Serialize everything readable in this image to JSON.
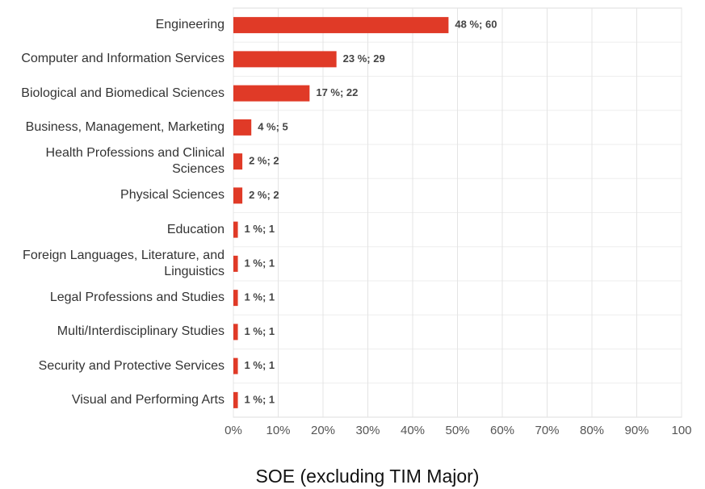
{
  "chart_data": {
    "type": "hbar",
    "title": "SOE (excluding TIM Major)",
    "categories": [
      "Engineering",
      "Computer and Information Services",
      "Biological and Biomedical Sciences",
      "Business, Management, Marketing",
      "Health Professions and Clinical Sciences",
      "Physical Sciences",
      "Education",
      "Foreign Languages, Literature, and Linguistics",
      "Legal Professions and Studies",
      "Multi/Interdisciplinary Studies",
      "Security and Protective Services",
      "Visual and Performing Arts"
    ],
    "values": [
      48,
      23,
      17,
      4,
      2,
      2,
      1,
      1,
      1,
      1,
      1,
      1
    ],
    "value_labels": [
      "48 %; 60",
      "23 %; 29",
      "17 %; 22",
      "4 %; 5",
      "2 %; 2",
      "2 %; 2",
      "1 %; 1",
      "1 %; 1",
      "1 %; 1",
      "1 %; 1",
      "1 %; 1",
      "1 %; 1"
    ],
    "color": "#e03a27",
    "xlim": [
      0,
      100
    ],
    "xticks": [
      {
        "value": 0,
        "label": "0%"
      },
      {
        "value": 10,
        "label": "10%"
      },
      {
        "value": 20,
        "label": "20%"
      },
      {
        "value": 30,
        "label": "30%"
      },
      {
        "value": 40,
        "label": "40%"
      },
      {
        "value": 50,
        "label": "50%"
      },
      {
        "value": 60,
        "label": "60%"
      },
      {
        "value": 70,
        "label": "70%"
      },
      {
        "value": 80,
        "label": "80%"
      },
      {
        "value": 90,
        "label": "90%"
      },
      100
    ],
    "grid": true
  }
}
